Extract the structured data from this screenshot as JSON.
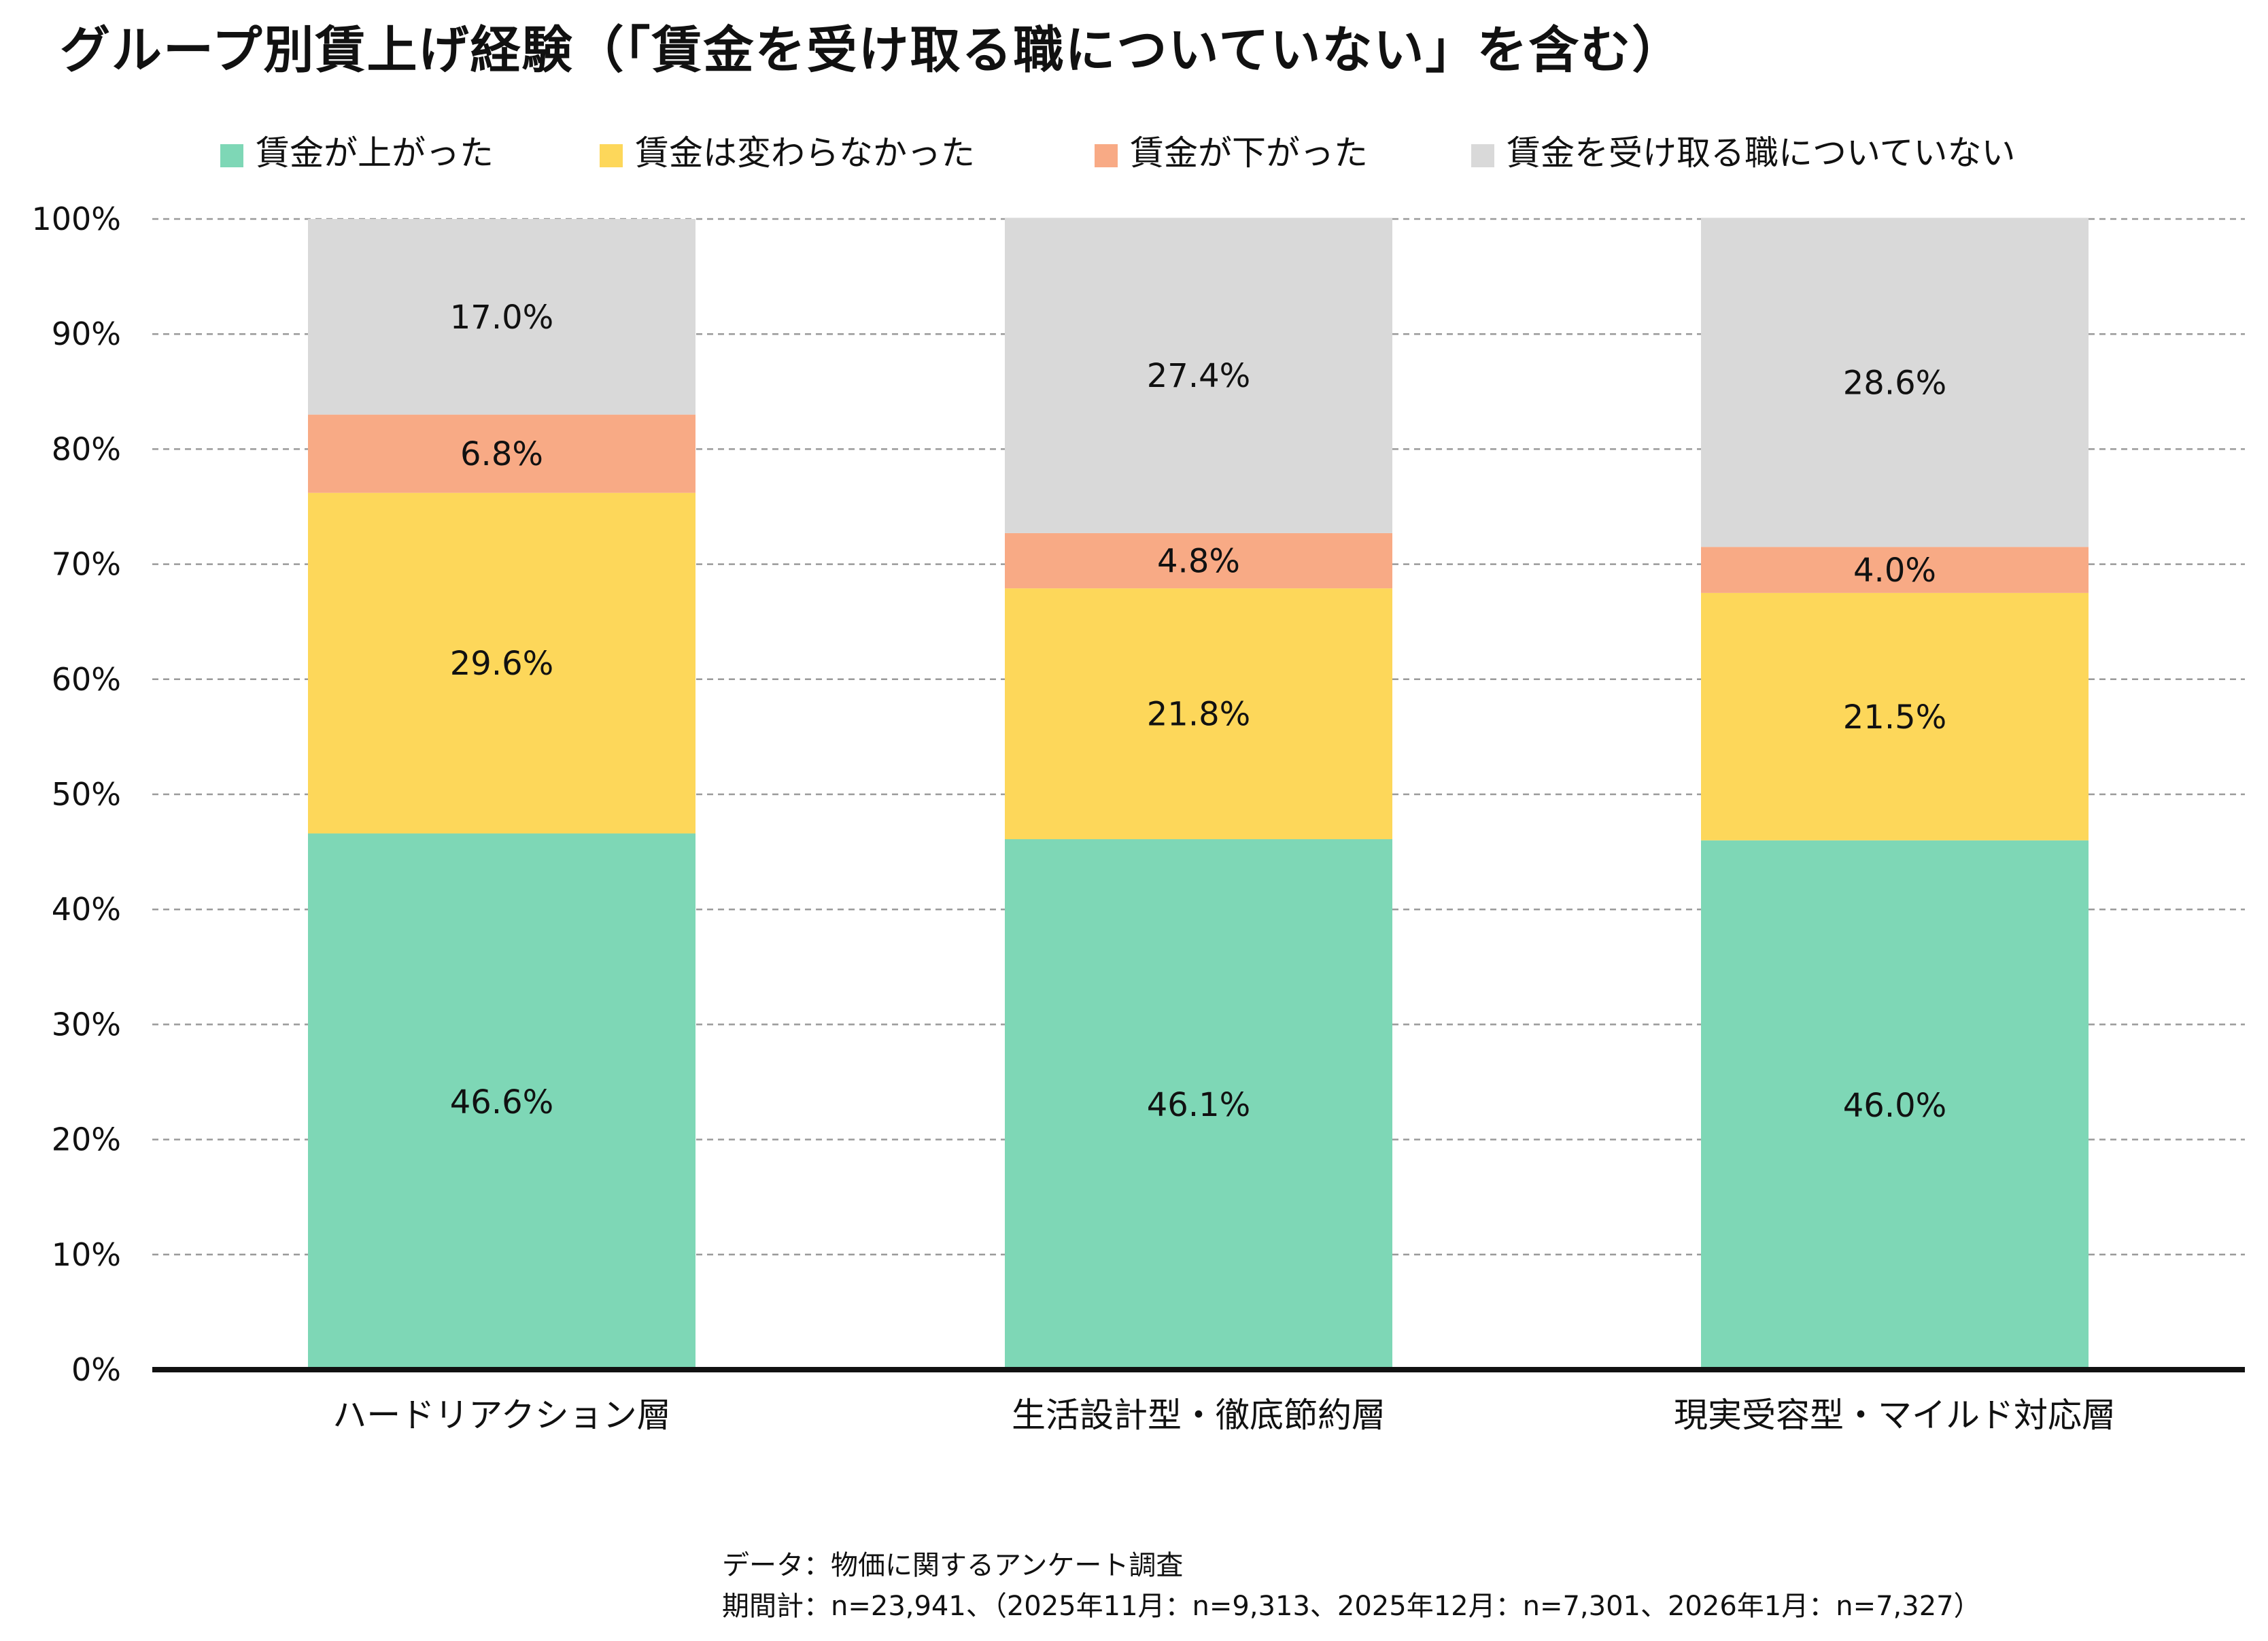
{
  "chart_data": {
    "type": "bar",
    "stacked": true,
    "title": "グループ別賃上げ経験（「賃金を受け取る職についていない」を含む）",
    "categories": [
      "ハードリアクション層",
      "生活設計型・徹底節約層",
      "現実受容型・マイルド対応層"
    ],
    "series": [
      {
        "name": "賃金が上がった",
        "color": "#7ED7B6",
        "values": [
          46.6,
          46.1,
          46.0
        ],
        "labels": [
          "46.6%",
          "46.1%",
          "46.0%"
        ]
      },
      {
        "name": "賃金は変わらなかった",
        "color": "#FDD75A",
        "values": [
          29.6,
          21.8,
          21.5
        ],
        "labels": [
          "29.6%",
          "21.8%",
          "21.5%"
        ]
      },
      {
        "name": "賃金が下がった",
        "color": "#F8AA85",
        "values": [
          6.8,
          4.8,
          4.0
        ],
        "labels": [
          "6.8%",
          "4.8%",
          "4.0%"
        ]
      },
      {
        "name": "賃金を受け取る職についていない",
        "color": "#D9D9D9",
        "values": [
          17.0,
          27.4,
          28.6
        ],
        "labels": [
          "17.0%",
          "27.4%",
          "28.6%"
        ]
      }
    ],
    "ylim": [
      0,
      100
    ],
    "yticks": [
      "0%",
      "10%",
      "20%",
      "30%",
      "40%",
      "50%",
      "60%",
      "70%",
      "80%",
      "90%",
      "100%"
    ],
    "grid": true,
    "legend_position": "top",
    "xlabel": "",
    "ylabel": ""
  },
  "footnote": {
    "line1": "データ：物価に関するアンケート調査",
    "line2": "期間計：n=23,941、（2025年11月：n=9,313、2025年12月：n=7,301、2026年1月：n=7,327）"
  }
}
